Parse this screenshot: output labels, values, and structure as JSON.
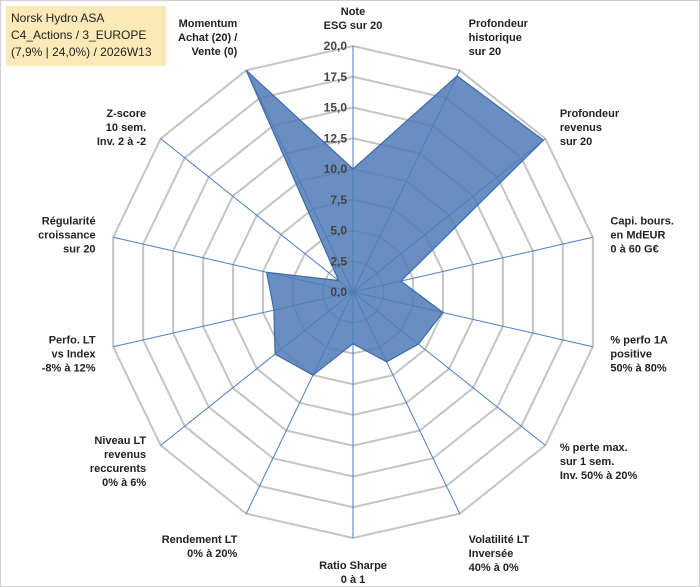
{
  "info_box": {
    "line1": "Norsk Hydro ASA",
    "line2": "C4_Actions / 3_EUROPE",
    "line3": "(7,9% | 24,0%) / 2026W13"
  },
  "chart_data": {
    "type": "radar",
    "title": "",
    "r_range": [
      0,
      20
    ],
    "tick_labels": [
      "0,0",
      "2,5",
      "5,0",
      "7,5",
      "10,0",
      "12,5",
      "15,0",
      "17,5",
      "20,0"
    ],
    "grid": true,
    "series_color": "#4f7bb7",
    "axes": [
      [
        "Note",
        "ESG sur 20"
      ],
      [
        "Profondeur",
        "historique",
        "sur 20"
      ],
      [
        "Profondeur",
        "revenus",
        "sur 20"
      ],
      [
        "Capi. bours.",
        "en MdEUR",
        "0 à 60 G€"
      ],
      [
        "% perfo 1A",
        "positive",
        "50% à 80%"
      ],
      [
        "% perte max.",
        "sur 1 sem.",
        "Inv. 50% à 20%"
      ],
      [
        "Volatilité LT",
        "Inversée",
        "40% à 0%"
      ],
      [
        "Ratio Sharpe",
        "0 à 1"
      ],
      [
        "Rendement LT",
        "0% à 20%"
      ],
      [
        "Niveau LT",
        "revenus",
        "reccurents",
        "0% à 6%"
      ],
      [
        "Perfo. LT",
        "vs Index",
        "-8% à 12%"
      ],
      [
        "Régularité",
        "croissance",
        "sur 20"
      ],
      [
        "Z-score",
        "10 sem.",
        "Inv. 2 à -2"
      ],
      [
        "Momentum",
        "Achat (20) /",
        "Vente (0)"
      ]
    ],
    "series": [
      {
        "values": [
          10.0,
          19.5,
          19.8,
          4.0,
          7.5,
          6.8,
          6.3,
          4.2,
          7.5,
          8.1,
          6.6,
          7.2,
          1.5,
          20.0
        ]
      }
    ]
  }
}
